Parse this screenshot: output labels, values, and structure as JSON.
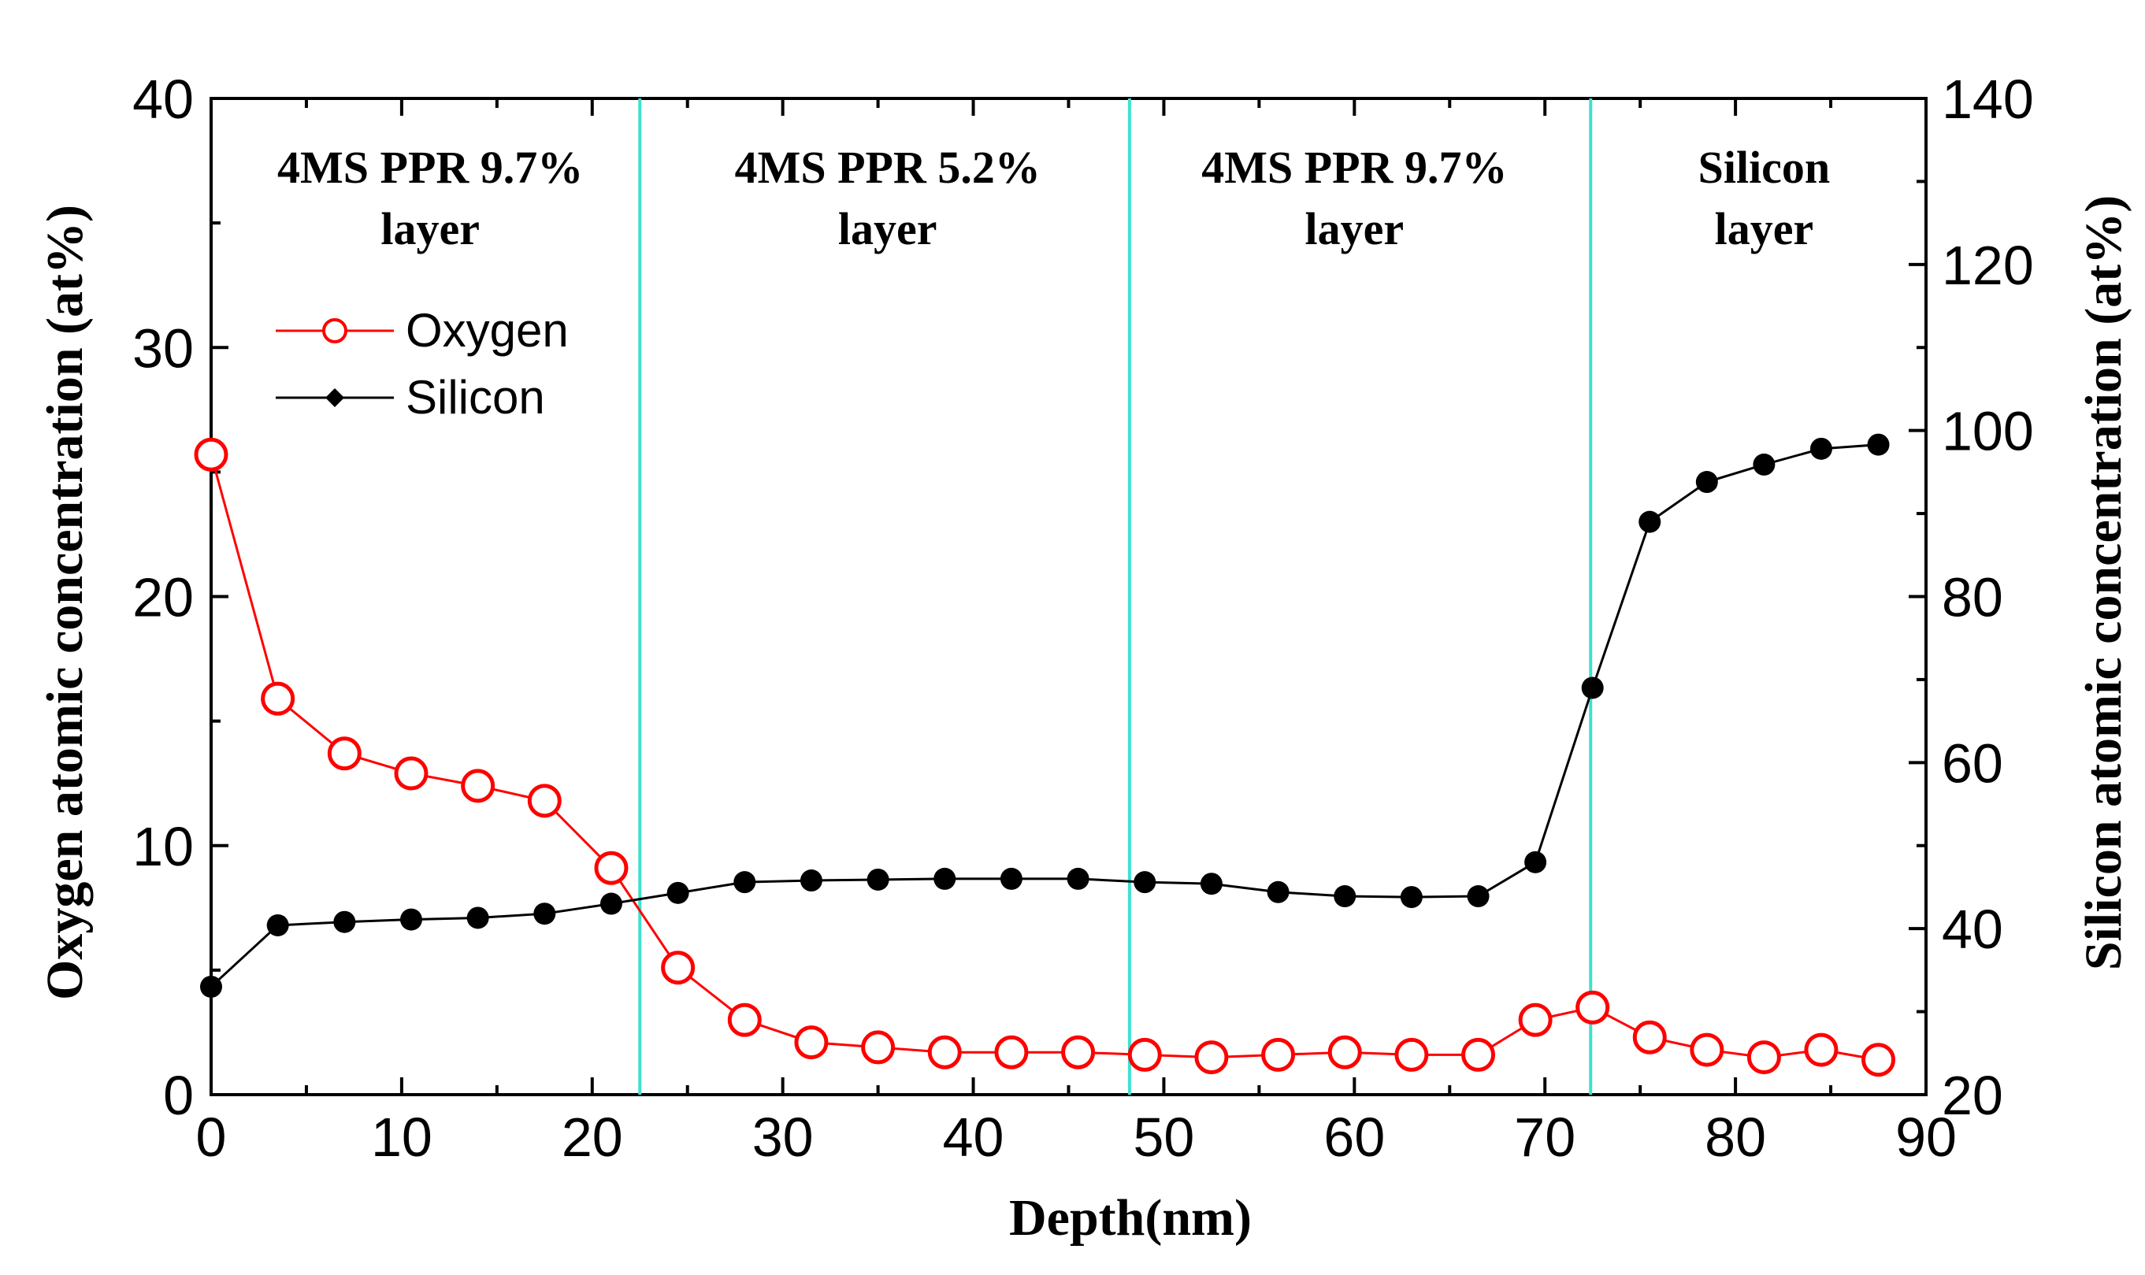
{
  "chart_data": {
    "type": "line",
    "title": "",
    "xlabel": "Depth(nm)",
    "ylabel_left": "Oxygen atomic concentration (at%)",
    "ylabel_right": "Silicon atomic concentration (at%)",
    "xlim": [
      0,
      90
    ],
    "ylim_left": [
      0,
      40
    ],
    "ylim_right": [
      20,
      140
    ],
    "xticks": [
      0,
      10,
      20,
      30,
      40,
      50,
      60,
      70,
      80,
      90
    ],
    "yticks_left": [
      0,
      10,
      20,
      30,
      40
    ],
    "yticks_right": [
      20,
      40,
      60,
      80,
      100,
      120,
      140
    ],
    "grid": false,
    "legend_position": "upper-left",
    "region_boundaries": [
      22.5,
      48.2,
      72.4
    ],
    "boundary_color": "#40E0D0",
    "regions": [
      {
        "line1": "4MS PPR 9.7%",
        "line2": "layer",
        "x_center": 11.5
      },
      {
        "line1": "4MS PPR 5.2%",
        "line2": "layer",
        "x_center": 35.5
      },
      {
        "line1": "4MS PPR 9.7%",
        "line2": "layer",
        "x_center": 60
      },
      {
        "line1": "Silicon",
        "line2": "layer",
        "x_center": 81.5
      }
    ],
    "series": [
      {
        "name": "Oxygen",
        "axis": "left",
        "color": "#FF0000",
        "marker": "open-circle",
        "x": [
          0,
          3.5,
          7,
          10.5,
          14,
          17.5,
          21,
          24.5,
          28,
          31.5,
          35,
          38.5,
          42,
          45.5,
          49,
          52.5,
          56,
          59.5,
          63,
          66.5,
          69.5,
          72.5,
          75.5,
          78.5,
          81.5,
          84.5,
          87.5
        ],
        "values": [
          25.7,
          15.9,
          13.7,
          12.9,
          12.4,
          11.8,
          9.1,
          5.1,
          3.0,
          2.1,
          1.9,
          1.7,
          1.7,
          1.7,
          1.6,
          1.5,
          1.6,
          1.7,
          1.6,
          1.6,
          3.0,
          3.5,
          2.3,
          1.8,
          1.5,
          1.8,
          1.4
        ]
      },
      {
        "name": "Silicon",
        "axis": "right",
        "color": "#000000",
        "marker": "filled-circle",
        "x": [
          0,
          3.5,
          7,
          10.5,
          14,
          17.5,
          21,
          24.5,
          28,
          31.5,
          35,
          38.5,
          42,
          45.5,
          49,
          52.5,
          56,
          59.5,
          63,
          66.5,
          69.5,
          72.5,
          75.5,
          78.5,
          81.5,
          84.5,
          87.5
        ],
        "values": [
          33.0,
          40.4,
          40.8,
          41.1,
          41.3,
          41.8,
          43.0,
          44.3,
          45.6,
          45.8,
          45.9,
          46.0,
          46.0,
          46.0,
          45.6,
          45.4,
          44.4,
          43.9,
          43.8,
          43.9,
          48.0,
          69.0,
          89.0,
          93.8,
          95.9,
          97.8,
          98.3
        ]
      }
    ]
  }
}
